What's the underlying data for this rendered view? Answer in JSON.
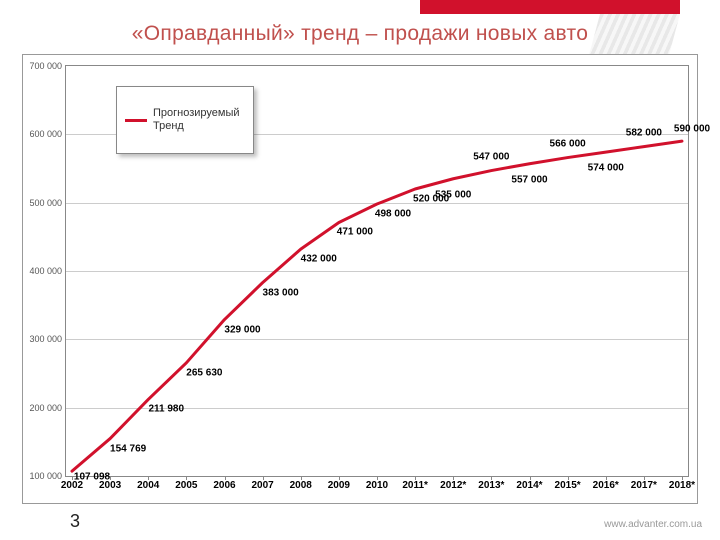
{
  "title": "«Оправданный» тренд – продажи новых авто",
  "page_number": "3",
  "footer_url": "www.advanter.com.ua",
  "banner_color": "#d1112c",
  "title_color": "#c0504d",
  "chart": {
    "type": "line",
    "series_name": "Прогнозируемый Тренд",
    "series_color": "#d1112c",
    "line_width": 3,
    "background_color": "#ffffff",
    "grid_color": "#cccccc",
    "axis_color": "#888888",
    "ylim_min": 100000,
    "ylim_max": 700000,
    "ytick_step": 100000,
    "yticks": [
      {
        "v": 100000,
        "label": "100 000"
      },
      {
        "v": 200000,
        "label": "200 000"
      },
      {
        "v": 300000,
        "label": "300 000"
      },
      {
        "v": 400000,
        "label": "400 000"
      },
      {
        "v": 500000,
        "label": "500 000"
      },
      {
        "v": 600000,
        "label": "600 000"
      },
      {
        "v": 700000,
        "label": "700 000"
      }
    ],
    "categories": [
      "2002",
      "2003",
      "2004",
      "2005",
      "2006",
      "2007",
      "2008",
      "2009",
      "2010",
      "2011*",
      "2012*",
      "2013*",
      "2014*",
      "2015*",
      "2016*",
      "2017*",
      "2018*"
    ],
    "values": [
      107098,
      154769,
      211980,
      265630,
      329000,
      383000,
      432000,
      471000,
      498000,
      520000,
      535000,
      547000,
      557000,
      566000,
      574000,
      582000,
      590000
    ],
    "value_labels": [
      "107 098",
      "154 769",
      "211 980",
      "265 630",
      "329 000",
      "383 000",
      "432 000",
      "471 000",
      "498 000",
      "520 000",
      "535 000",
      "547 000",
      "557 000",
      "566 000",
      "574 000",
      "582 000",
      "590 000"
    ],
    "ylabel_fontsize": 9,
    "xlabel_fontsize": 10,
    "datalabel_fontsize": 10
  },
  "legend": {
    "label": "Прогнозируемый\nТренд"
  }
}
